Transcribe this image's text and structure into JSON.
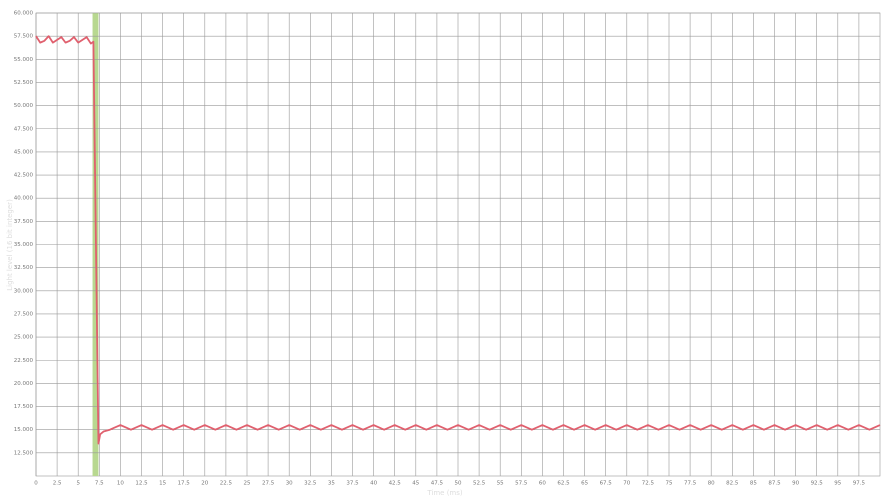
{
  "chart_data": {
    "type": "line",
    "x_label": "Time (ms)",
    "y_label": "Light level (16 bit integer)",
    "xlim": [
      0,
      100
    ],
    "ylim": [
      10000,
      60000
    ],
    "xticks": [
      0,
      2.5,
      5,
      7.5,
      10,
      12.5,
      15,
      17.5,
      20,
      22.5,
      25,
      27.5,
      30,
      32.5,
      35,
      37.5,
      40,
      42.5,
      45,
      47.5,
      50,
      52.5,
      55,
      57.5,
      60,
      62.5,
      65,
      67.5,
      70,
      72.5,
      75,
      77.5,
      80,
      82.5,
      85,
      87.5,
      90,
      92.5,
      95,
      97.5
    ],
    "yticks": [
      {
        "value": 12500,
        "label": "12.500"
      },
      {
        "value": 15000,
        "label": "15.000"
      },
      {
        "value": 17500,
        "label": "17.500"
      },
      {
        "value": 20000,
        "label": "20.000"
      },
      {
        "value": 22500,
        "label": "22.500"
      },
      {
        "value": 25000,
        "label": "25.000"
      },
      {
        "value": 27500,
        "label": "27.500"
      },
      {
        "value": 30000,
        "label": "30.000"
      },
      {
        "value": 32500,
        "label": "32.500"
      },
      {
        "value": 35000,
        "label": "35.000"
      },
      {
        "value": 37500,
        "label": "37.500"
      },
      {
        "value": 40000,
        "label": "40.000"
      },
      {
        "value": 42500,
        "label": "42.500"
      },
      {
        "value": 45000,
        "label": "45.000"
      },
      {
        "value": 47500,
        "label": "47.500"
      },
      {
        "value": 50000,
        "label": "50.000"
      },
      {
        "value": 52500,
        "label": "52.500"
      },
      {
        "value": 55000,
        "label": "55.000"
      },
      {
        "value": 57500,
        "label": "57.500"
      },
      {
        "value": 60000,
        "label": "60.000"
      }
    ],
    "grid": true,
    "highlight": {
      "x": [
        6.7,
        7.4
      ],
      "color": "#b8d890"
    },
    "series": [
      {
        "color": "#e0606e",
        "x": [
          0,
          0.5,
          1,
          1.5,
          2,
          2.5,
          3,
          3.5,
          4,
          4.5,
          5,
          5.5,
          6,
          6.5,
          6.8,
          7.4,
          7.6,
          8,
          8.75,
          9.25,
          10,
          11.25,
          12.5,
          13.75,
          15,
          16.25,
          17.5,
          18.75,
          20,
          21.25,
          22.5,
          23.75,
          25,
          26.25,
          27.5,
          28.75,
          30,
          31.25,
          32.5,
          33.75,
          35,
          36.25,
          37.5,
          38.75,
          40,
          41.25,
          42.5,
          43.75,
          45,
          46.25,
          47.5,
          48.75,
          50,
          51.25,
          52.5,
          53.75,
          55,
          56.25,
          57.5,
          58.75,
          60,
          61.25,
          62.5,
          63.75,
          65,
          66.25,
          67.5,
          68.75,
          70,
          71.25,
          72.5,
          73.75,
          75,
          76.25,
          77.5,
          78.75,
          80,
          81.25,
          82.5,
          83.75,
          85,
          86.25,
          87.5,
          88.75,
          90,
          91.25,
          92.5,
          93.75,
          95,
          96.25,
          97.5,
          98.75,
          100
        ],
        "values": [
          57500,
          56800,
          57000,
          57500,
          56800,
          57100,
          57400,
          56800,
          57000,
          57400,
          56800,
          57100,
          57400,
          56700,
          56900,
          13500,
          14500,
          14800,
          15000,
          15200,
          15500,
          15000,
          15500,
          15000,
          15500,
          15000,
          15500,
          15000,
          15500,
          15000,
          15500,
          15000,
          15500,
          15000,
          15500,
          15000,
          15500,
          15000,
          15500,
          15000,
          15500,
          15000,
          15500,
          15000,
          15500,
          15000,
          15500,
          15000,
          15500,
          15000,
          15500,
          15000,
          15500,
          15000,
          15500,
          15000,
          15500,
          15000,
          15500,
          15000,
          15500,
          15000,
          15500,
          15000,
          15500,
          15000,
          15500,
          15000,
          15500,
          15000,
          15500,
          15000,
          15500,
          15000,
          15500,
          15000,
          15500,
          15000,
          15500,
          15000,
          15500,
          15000,
          15500,
          15000,
          15500,
          15000,
          15500,
          15000,
          15500,
          15000,
          15500,
          15000,
          15500
        ]
      }
    ]
  }
}
